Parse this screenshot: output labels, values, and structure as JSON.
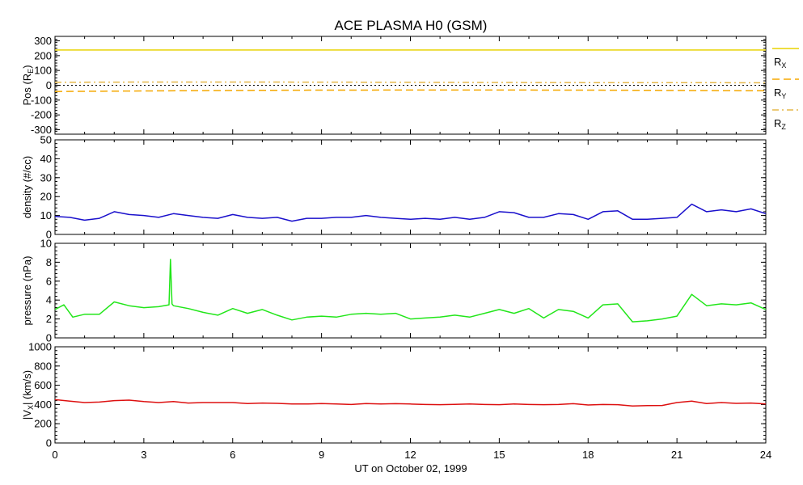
{
  "title": "ACE PLASMA H0 (GSM)",
  "xlabel": "UT on October 02, 1999",
  "x_ticks": [
    0,
    3,
    6,
    9,
    12,
    15,
    18,
    21,
    24
  ],
  "colors": {
    "rx": "#e8d200",
    "ry": "#f5a800",
    "rz": "#e6b84a",
    "density": "#1a10cc",
    "pressure": "#22e61a",
    "vx": "#dd1010",
    "zero_line": "#000000"
  },
  "chart_data": [
    {
      "type": "line",
      "ylabel": "Pos (R",
      "ylabel_sub": "E",
      "ylabel_close": ")",
      "ylim": [
        -330,
        330
      ],
      "y_ticks": [
        300,
        200,
        100,
        0,
        -100,
        -200,
        -300
      ],
      "xlim": [
        0,
        24
      ],
      "series": [
        {
          "name": "R",
          "sub": "X",
          "style": "solid",
          "x": [
            0,
            24
          ],
          "values": [
            238,
            238
          ]
        },
        {
          "name": "R",
          "sub": "Y",
          "style": "dashed",
          "x": [
            0,
            3,
            6,
            9,
            12,
            15,
            18,
            21,
            24
          ],
          "values": [
            -42,
            -38,
            -35,
            -33,
            -32,
            -32,
            -33,
            -35,
            -37
          ]
        },
        {
          "name": "R",
          "sub": "Z",
          "style": "dashdot",
          "x": [
            0,
            3,
            6,
            9,
            12,
            15,
            18,
            21,
            24
          ],
          "values": [
            20,
            22,
            22,
            21,
            20,
            19,
            18,
            18,
            17
          ]
        },
        {
          "name": "",
          "style": "dotted",
          "x": [
            0,
            24
          ],
          "values": [
            0,
            0
          ]
        }
      ]
    },
    {
      "type": "line",
      "ylabel": "density (#/cc)",
      "ylim": [
        0,
        50
      ],
      "y_ticks": [
        0,
        10,
        20,
        30,
        40,
        50
      ],
      "xlim": [
        0,
        24
      ],
      "series": [
        {
          "name": "density",
          "x": [
            0,
            0.5,
            1,
            1.5,
            2,
            2.5,
            3,
            3.5,
            4,
            4.5,
            5,
            5.5,
            6,
            6.5,
            7,
            7.5,
            8,
            8.5,
            9,
            9.5,
            10,
            10.5,
            11,
            11.5,
            12,
            12.5,
            13,
            13.5,
            14,
            14.5,
            15,
            15.5,
            16,
            16.5,
            17,
            17.5,
            18,
            18.5,
            19,
            19.5,
            20,
            20.5,
            21,
            21.5,
            22,
            22.5,
            23,
            23.5,
            24
          ],
          "values": [
            9.5,
            9,
            7.5,
            8.5,
            12,
            10.5,
            10,
            9,
            11,
            10,
            9,
            8.5,
            10.5,
            9,
            8.5,
            9,
            7,
            8.5,
            8.5,
            9,
            9,
            10,
            9,
            8.5,
            8,
            8.5,
            8,
            9,
            8,
            9,
            12,
            11.5,
            9,
            9,
            11,
            10.5,
            8,
            12,
            12.5,
            8,
            8,
            8.5,
            9,
            16,
            12,
            13,
            12,
            13.5,
            11
          ]
        }
      ]
    },
    {
      "type": "line",
      "ylabel": "pressure (nPa)",
      "ylim": [
        0,
        10
      ],
      "y_ticks": [
        0,
        2,
        4,
        6,
        8,
        10
      ],
      "xlim": [
        0,
        24
      ],
      "series": [
        {
          "name": "pressure",
          "x": [
            0,
            0.3,
            0.6,
            1,
            1.5,
            2,
            2.5,
            3,
            3.5,
            3.85,
            3.9,
            3.95,
            4,
            4.5,
            5,
            5.5,
            6,
            6.5,
            7,
            7.5,
            8,
            8.5,
            9,
            9.5,
            10,
            10.5,
            11,
            11.5,
            12,
            12.5,
            13,
            13.5,
            14,
            14.5,
            15,
            15.5,
            16,
            16.5,
            17,
            17.5,
            18,
            18.5,
            19,
            19.5,
            20,
            20.5,
            21,
            21.5,
            22,
            22.5,
            23,
            23.5,
            24
          ],
          "values": [
            3,
            3.5,
            2.2,
            2.5,
            2.5,
            3.8,
            3.4,
            3.2,
            3.3,
            3.5,
            8.3,
            3.6,
            3.4,
            3.1,
            2.7,
            2.4,
            3.1,
            2.6,
            3,
            2.4,
            1.9,
            2.2,
            2.3,
            2.2,
            2.5,
            2.6,
            2.5,
            2.6,
            2,
            2.1,
            2.2,
            2.4,
            2.2,
            2.6,
            3,
            2.6,
            3.1,
            2.1,
            3,
            2.8,
            2.1,
            3.5,
            3.6,
            1.7,
            1.8,
            2,
            2.3,
            4.6,
            3.4,
            3.6,
            3.5,
            3.7,
            3
          ]
        }
      ]
    },
    {
      "type": "line",
      "ylabel": "|V",
      "ylabel_sub": "X",
      "ylabel_close": "| (km/s)",
      "ylim": [
        0,
        1000
      ],
      "y_ticks": [
        0,
        200,
        400,
        600,
        800,
        1000
      ],
      "xlim": [
        0,
        24
      ],
      "series": [
        {
          "name": "vx",
          "x": [
            0,
            0.5,
            1,
            1.5,
            2,
            2.5,
            3,
            3.5,
            4,
            4.5,
            5,
            5.5,
            6,
            6.5,
            7,
            7.5,
            8,
            8.5,
            9,
            9.5,
            10,
            10.5,
            11,
            11.5,
            12,
            12.5,
            13,
            13.5,
            14,
            14.5,
            15,
            15.5,
            16,
            16.5,
            17,
            17.5,
            18,
            18.5,
            19,
            19.5,
            20,
            20.5,
            21,
            21.5,
            22,
            22.5,
            23,
            23.5,
            24
          ],
          "values": [
            450,
            435,
            420,
            425,
            440,
            445,
            430,
            420,
            430,
            415,
            420,
            420,
            420,
            410,
            415,
            412,
            405,
            405,
            410,
            405,
            400,
            410,
            405,
            408,
            405,
            400,
            398,
            402,
            405,
            400,
            398,
            405,
            400,
            398,
            400,
            408,
            395,
            400,
            398,
            385,
            388,
            390,
            420,
            435,
            410,
            420,
            412,
            415,
            405
          ]
        }
      ]
    }
  ]
}
